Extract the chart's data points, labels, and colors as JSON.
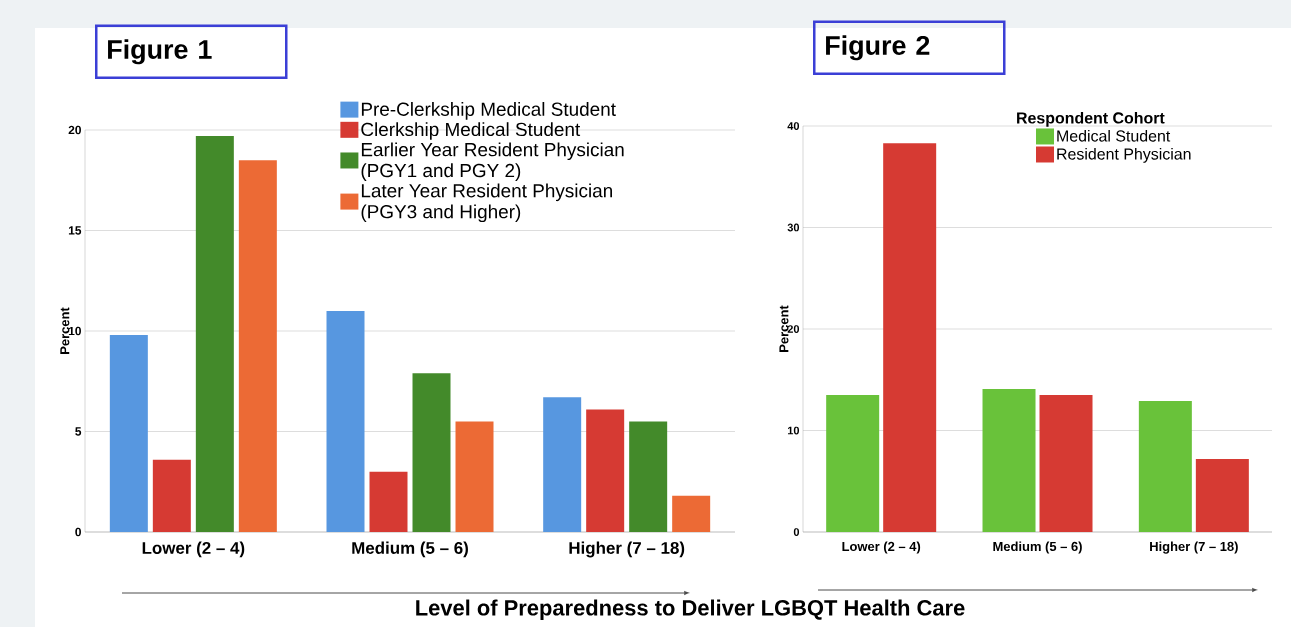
{
  "chart_data": [
    {
      "type": "bar",
      "title": "Figure 1",
      "ylabel": "Percent",
      "xlabel": "Level of Preparedness to Deliver LGBQT Health Care",
      "categories": [
        "Lower (2 – 4)",
        "Medium (5 – 6)",
        "Higher (7 – 18)"
      ],
      "series": [
        {
          "name": "Pre-Clerkship Medical Student",
          "color": "#5797e0",
          "values": [
            9.8,
            11.0,
            6.7
          ]
        },
        {
          "name": "Clerkship Medical Student",
          "color": "#d63a33",
          "values": [
            3.6,
            3.0,
            6.1
          ]
        },
        {
          "name": "Earlier Year Resident Physician (PGY1 and PGY 2)",
          "color": "#438a2a",
          "values": [
            19.7,
            7.9,
            5.5
          ]
        },
        {
          "name": "Later Year Resident Physician (PGY3 and Higher)",
          "color": "#ec6a35",
          "values": [
            18.5,
            5.5,
            1.8
          ]
        }
      ],
      "ylim": [
        0,
        20
      ],
      "yticks": [
        0,
        5,
        10,
        15,
        20
      ],
      "grid": "y",
      "legend": "top right"
    },
    {
      "type": "bar",
      "title": "Figure 2",
      "ylabel": "Percent",
      "legend_title": "Respondent Cohort",
      "categories": [
        "Lower (2 – 4)",
        "Medium (5 – 6)",
        "Higher (7 – 18)"
      ],
      "series": [
        {
          "name": "Medical Student",
          "color": "#69c23a",
          "values": [
            13.5,
            14.1,
            12.9
          ]
        },
        {
          "name": "Resident Physician",
          "color": "#d63a33",
          "values": [
            38.3,
            13.5,
            7.2
          ]
        }
      ],
      "ylim": [
        0,
        40
      ],
      "yticks": [
        0,
        10,
        20,
        30,
        40
      ],
      "grid": "y",
      "legend": "top right"
    }
  ]
}
